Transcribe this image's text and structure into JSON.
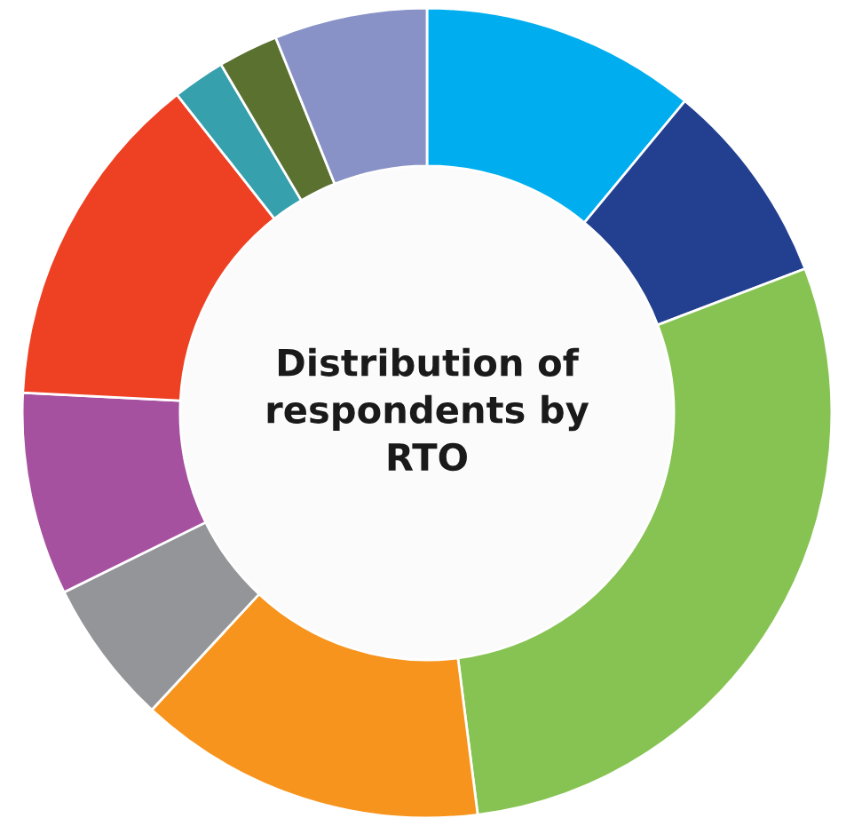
{
  "chart_data": {
    "type": "donut",
    "title": "Distribution of respondents by RTO",
    "categories": [
      null,
      null,
      null,
      null,
      null,
      null,
      null,
      null,
      null,
      null
    ],
    "values": [
      11.0,
      8.2,
      28.8,
      13.9,
      5.8,
      8.1,
      13.6,
      2.1,
      2.4,
      6.1
    ],
    "colors": [
      "#00aeef",
      "#233f8f",
      "#86c352",
      "#f7941d",
      "#939598",
      "#a650a0",
      "#ee4123",
      "#37a0ad",
      "#5a7130",
      "#8892c6"
    ]
  }
}
